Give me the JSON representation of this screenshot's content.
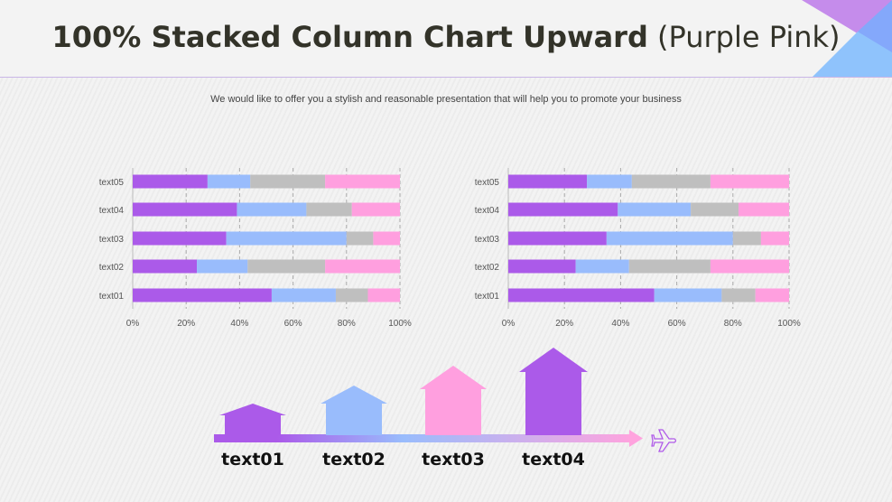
{
  "header": {
    "title_bold": "100% Stacked Column Chart Upward",
    "title_light": "(Purple Pink)"
  },
  "subtitle": "We would like to offer you a stylish and reasonable presentation that will help you to promote your business",
  "colors": {
    "purple": "#ab5ae9",
    "blue": "#99bcfc",
    "gray": "#bfbfbf",
    "pink": "#ff9fdf"
  },
  "chart_data": [
    {
      "type": "bar",
      "orientation": "horizontal",
      "stacked": "percent",
      "categories": [
        "text01",
        "text02",
        "text03",
        "text04",
        "text05"
      ],
      "series": [
        {
          "values": [
            52,
            24,
            35,
            39,
            28
          ],
          "color": "#ab5ae9"
        },
        {
          "values": [
            24,
            19,
            45,
            26,
            16
          ],
          "color": "#99bcfc"
        },
        {
          "values": [
            12,
            29,
            10,
            17,
            28
          ],
          "color": "#bfbfbf"
        },
        {
          "values": [
            12,
            28,
            10,
            18,
            28
          ],
          "color": "#ff9fdf"
        }
      ],
      "xticks": [
        "0%",
        "20%",
        "40%",
        "60%",
        "80%",
        "100%"
      ],
      "xlim": [
        0,
        100
      ],
      "grid": "vertical dashed"
    },
    {
      "type": "bar",
      "orientation": "horizontal",
      "stacked": "percent",
      "categories": [
        "text01",
        "text02",
        "text03",
        "text04",
        "text05"
      ],
      "series": [
        {
          "values": [
            52,
            24,
            35,
            39,
            28
          ],
          "color": "#ab5ae9"
        },
        {
          "values": [
            24,
            19,
            45,
            26,
            16
          ],
          "color": "#99bcfc"
        },
        {
          "values": [
            12,
            29,
            10,
            17,
            28
          ],
          "color": "#bfbfbf"
        },
        {
          "values": [
            12,
            28,
            10,
            18,
            28
          ],
          "color": "#ff9fdf"
        }
      ],
      "xticks": [
        "0%",
        "20%",
        "40%",
        "60%",
        "80%",
        "100%"
      ],
      "xlim": [
        0,
        100
      ],
      "grid": "vertical dashed"
    }
  ],
  "infographic": {
    "steps": [
      {
        "label": "text01",
        "color": "#ab5ae9"
      },
      {
        "label": "text02",
        "color": "#99bcfc"
      },
      {
        "label": "text03",
        "color": "#ff9fdf"
      },
      {
        "label": "text04",
        "color": "#ab5ae9"
      }
    ],
    "end_icon": "airplane-icon"
  }
}
